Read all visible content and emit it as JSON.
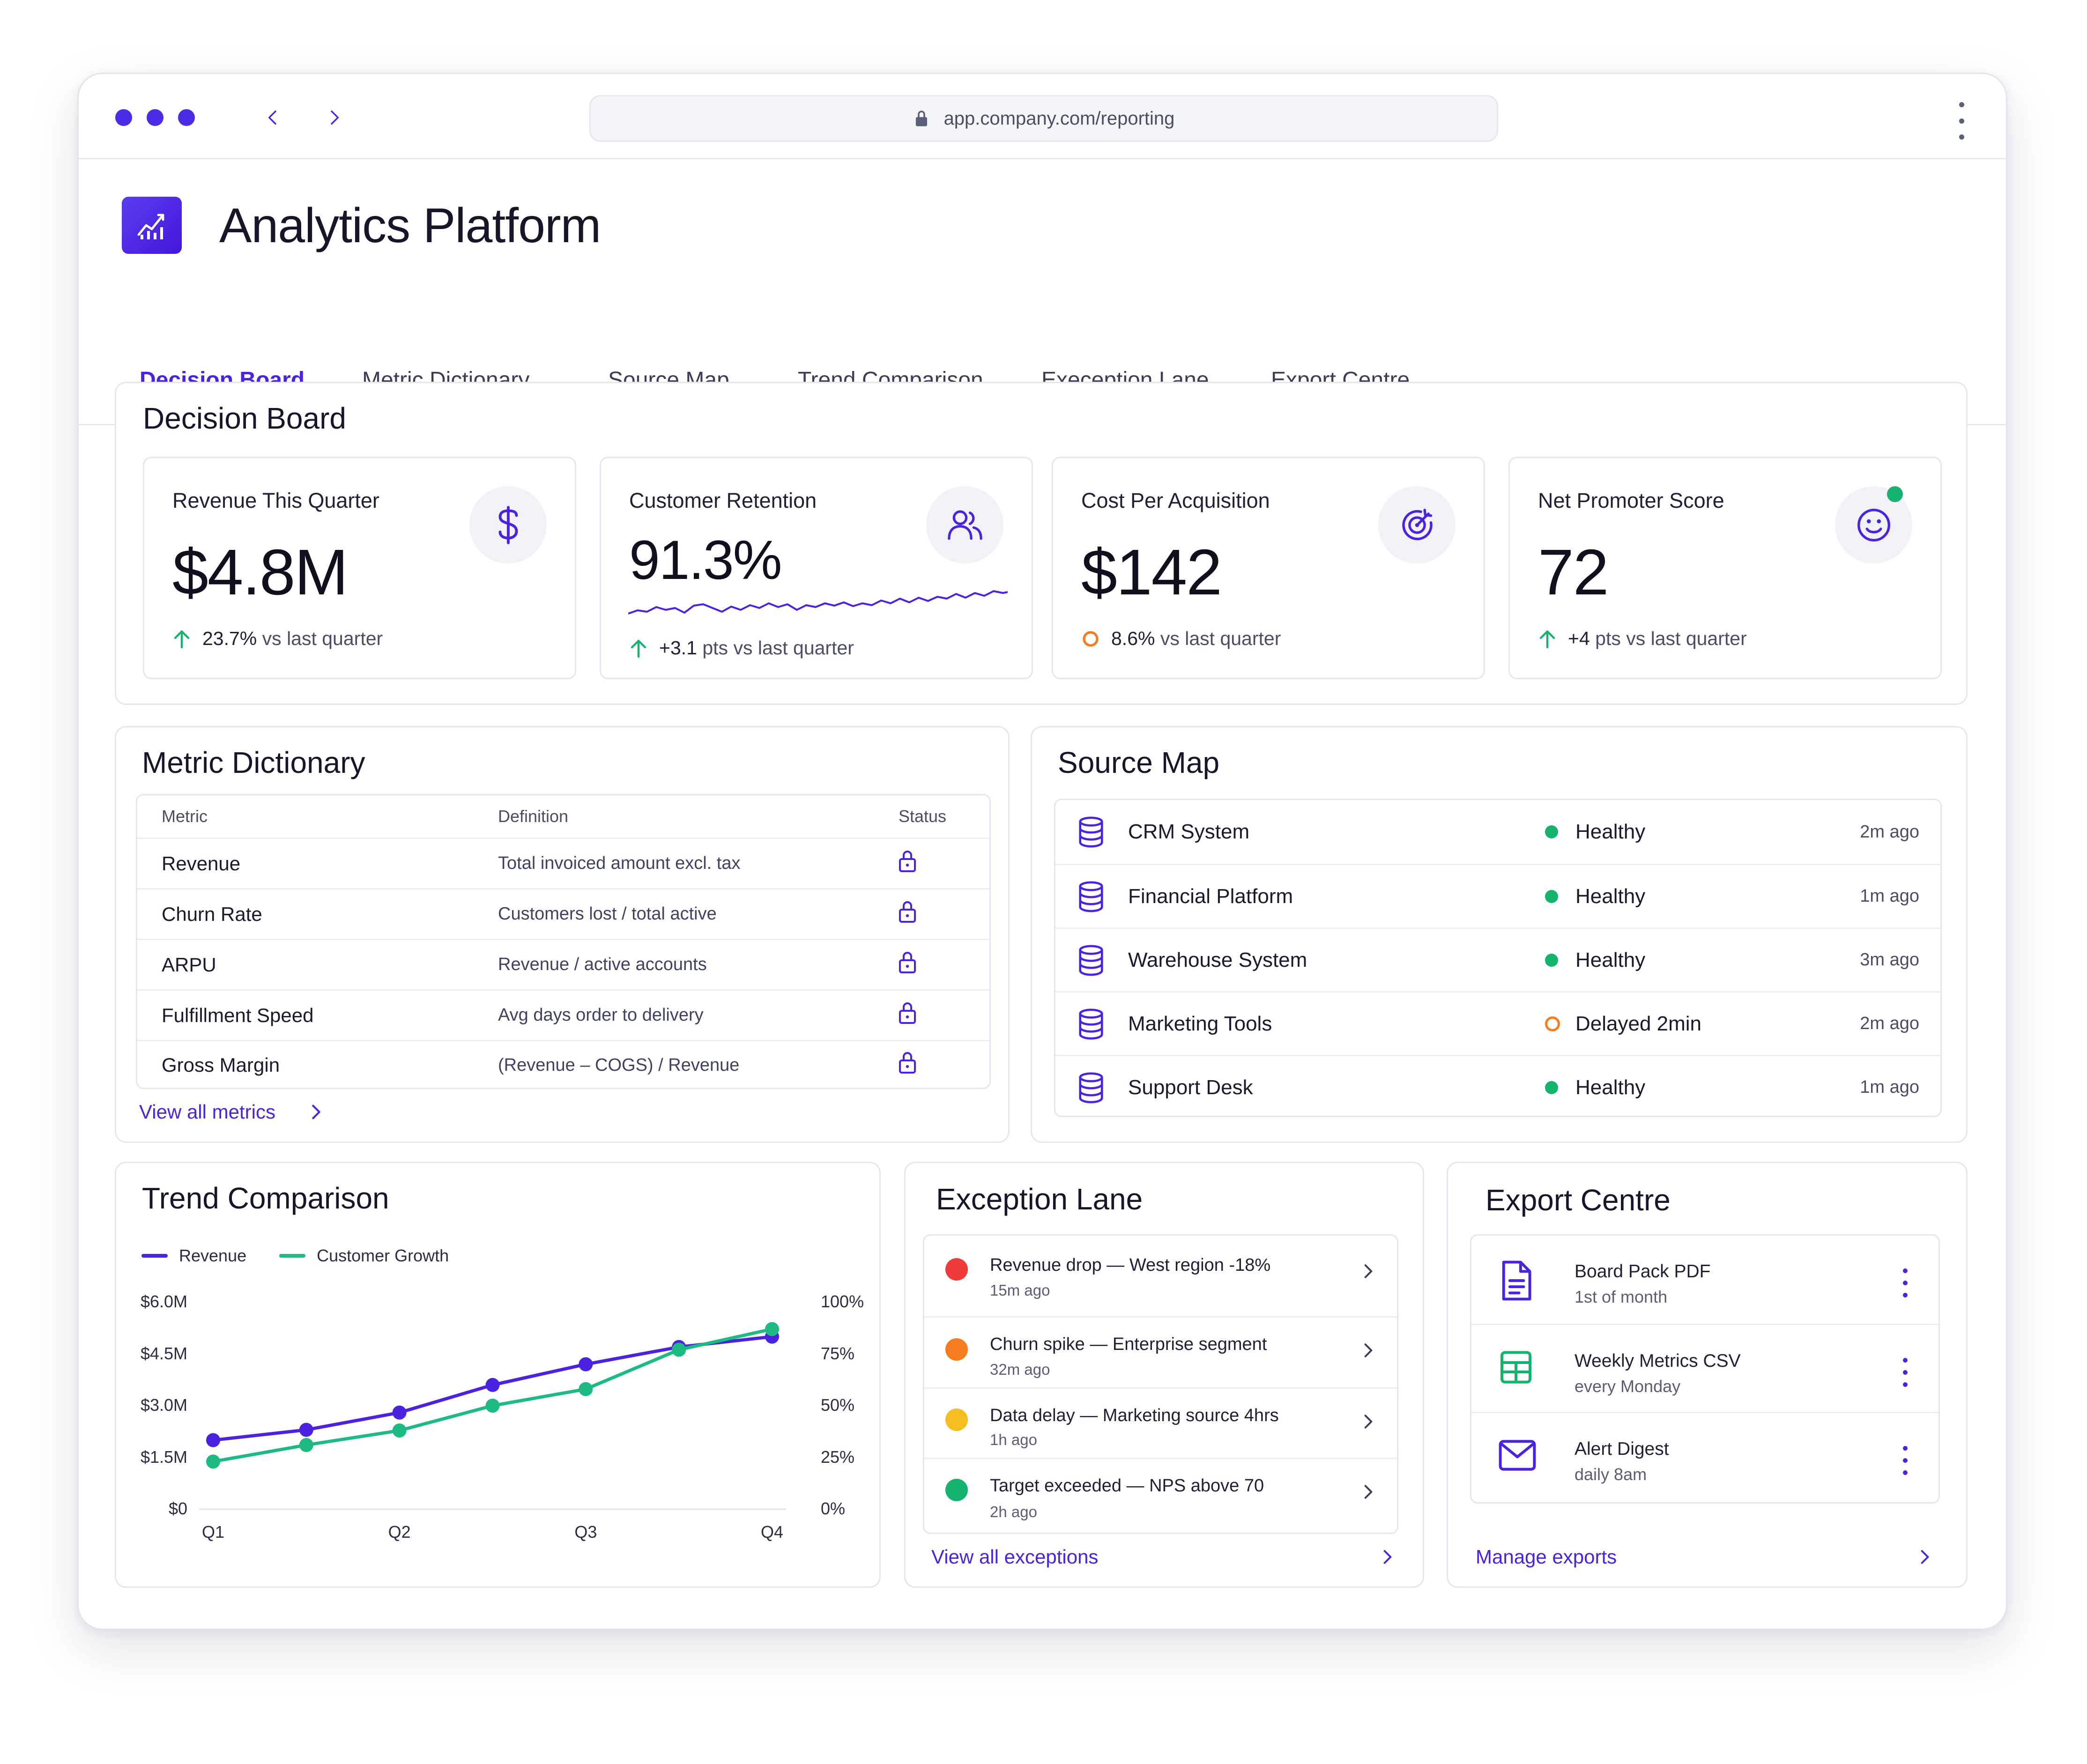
{
  "browser": {
    "url": "app.company.com/reporting"
  },
  "app": {
    "title": "Analytics Platform"
  },
  "tabs": [
    {
      "label": "Decision Board",
      "active": true
    },
    {
      "label": "Metric Dictionary",
      "active": false
    },
    {
      "label": "Source Map",
      "active": false
    },
    {
      "label": "Trend Comparison",
      "active": false
    },
    {
      "label": "Exeception Lane",
      "active": false
    },
    {
      "label": "Export Centre",
      "active": false
    }
  ],
  "decision_board": {
    "title": "Decision Board",
    "kpis": [
      {
        "label": "Revenue This Quarter",
        "value": "$4.8M",
        "delta": "23.7%",
        "delta_note": "vs last quarter",
        "icon": "dollar-icon",
        "trend": "up"
      },
      {
        "label": "Customer Retention",
        "value": "91.3%",
        "delta": "+3.1",
        "delta_note": "pts vs last quarter",
        "icon": "users-icon",
        "trend": "up"
      },
      {
        "label": "Cost Per Acquisition",
        "value": "$142",
        "delta": "8.6%",
        "delta_note": "vs last quarter",
        "icon": "target-icon",
        "trend": "neutral"
      },
      {
        "label": "Net Promoter Score",
        "value": "72",
        "delta": "+4",
        "delta_note": "pts vs last quarter",
        "icon": "smile-icon",
        "trend": "up"
      }
    ]
  },
  "metric_dictionary": {
    "title": "Metric Dictionary",
    "columns": [
      "Metric",
      "Definition",
      "Status"
    ],
    "rows": [
      {
        "metric": "Revenue",
        "definition": "Total invoiced amount excl. tax",
        "status_icon": "lock-icon"
      },
      {
        "metric": "Churn Rate",
        "definition": "Customers lost / total active",
        "status_icon": "lock-icon"
      },
      {
        "metric": "ARPU",
        "definition": "Revenue / active accounts",
        "status_icon": "lock-icon"
      },
      {
        "metric": "Fulfillment Speed",
        "definition": "Avg days order to delivery",
        "status_icon": "lock-icon"
      },
      {
        "metric": "Gross Margin",
        "definition": "(Revenue – COGS) / Revenue",
        "status_icon": "lock-icon"
      }
    ],
    "link": "View all metrics"
  },
  "source_map": {
    "title": "Source Map",
    "rows": [
      {
        "name": "CRM System",
        "status": "Healthy",
        "time": "2m ago",
        "state": "ok"
      },
      {
        "name": "Financial Platform",
        "status": "Healthy",
        "time": "1m ago",
        "state": "ok"
      },
      {
        "name": "Warehouse System",
        "status": "Healthy",
        "time": "3m ago",
        "state": "ok"
      },
      {
        "name": "Marketing Tools",
        "status": "Delayed 2min",
        "time": "2m ago",
        "state": "delayed"
      },
      {
        "name": "Support Desk",
        "status": "Healthy",
        "time": "1m ago",
        "state": "ok"
      }
    ]
  },
  "trend_comparison": {
    "title": "Trend Comparison"
  },
  "chart_data": {
    "type": "line",
    "title": "",
    "categories": [
      "Q1",
      "Q1.5",
      "Q2",
      "Q2.5",
      "Q3",
      "Q3.5",
      "Q4"
    ],
    "category_labels": [
      "Q1",
      "Q2",
      "Q3",
      "Q4"
    ],
    "series": [
      {
        "name": "Revenue",
        "axis": "left",
        "color": "#4a22e0",
        "values": [
          2.0,
          2.3,
          2.8,
          3.6,
          4.2,
          4.7,
          5.0
        ]
      },
      {
        "name": "Customer Growth",
        "axis": "right",
        "color": "#1dbb82",
        "values": [
          23,
          31,
          38,
          50,
          58,
          77,
          87
        ]
      }
    ],
    "left_ticks": [
      "$6.0M",
      "$4.5M",
      "$3.0M",
      "$1.5M",
      "$0"
    ],
    "right_ticks": [
      "100%",
      "75%",
      "50%",
      "25%",
      "0%"
    ],
    "ylim_left": [
      0,
      6.0
    ],
    "ylim_right": [
      0,
      100
    ],
    "grid": false,
    "legend_position": "top-left"
  },
  "exception_lane": {
    "title": "Exception Lane",
    "rows": [
      {
        "title": "Revenue drop — West region -18%",
        "time": "15m ago",
        "color": "#ef3b3b"
      },
      {
        "title": "Churn spike — Enterprise segment",
        "time": "32m ago",
        "color": "#f57c1f"
      },
      {
        "title": "Data delay — Marketing source 4hrs",
        "time": "1h ago",
        "color": "#f5bd1f"
      },
      {
        "title": "Target exceeded — NPS above 70",
        "time": "2h ago",
        "color": "#16b36e"
      }
    ],
    "link": "View all exceptions"
  },
  "export_centre": {
    "title": "Export Centre",
    "rows": [
      {
        "title": "Board Pack PDF",
        "sub": "1st of month",
        "icon": "document-icon"
      },
      {
        "title": "Weekly Metrics CSV",
        "sub": "every Monday",
        "icon": "spreadsheet-icon"
      },
      {
        "title": "Alert Digest",
        "sub": "daily 8am",
        "icon": "mail-icon"
      }
    ],
    "link": "Manage exports"
  },
  "colors": {
    "accent": "#4a22e0",
    "healthy": "#16b36e",
    "delayed": "#f57c1f"
  }
}
